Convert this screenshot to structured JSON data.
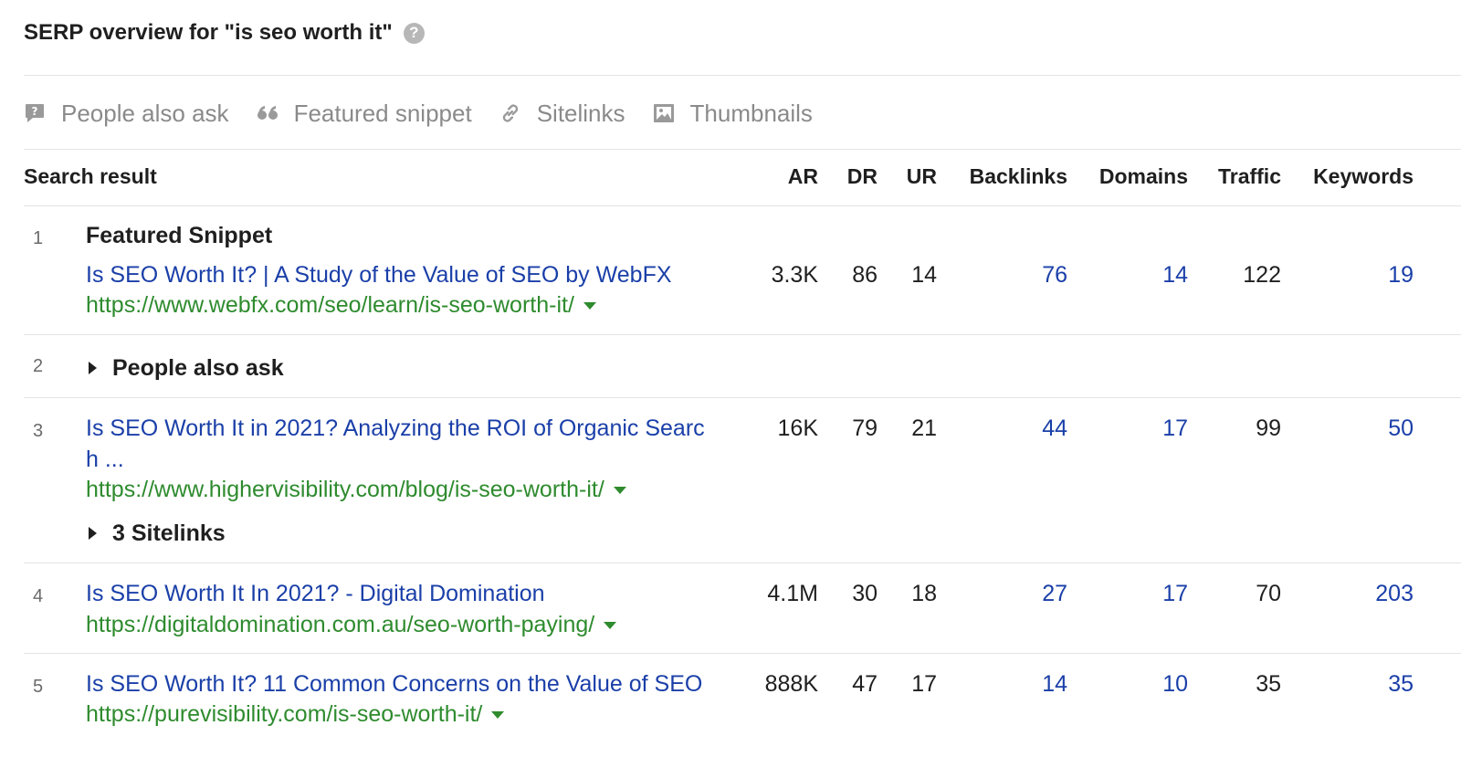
{
  "header": {
    "title": "SERP overview for \"is seo worth it\"",
    "help_icon": "question-circle-icon"
  },
  "features": [
    {
      "label": "People also ask",
      "icon": "question-bubble-icon"
    },
    {
      "label": "Featured snippet",
      "icon": "quote-icon"
    },
    {
      "label": "Sitelinks",
      "icon": "link-icon"
    },
    {
      "label": "Thumbnails",
      "icon": "image-icon"
    }
  ],
  "columns": {
    "search_result": "Search result",
    "ar": "AR",
    "dr": "DR",
    "ur": "UR",
    "backlinks": "Backlinks",
    "domains": "Domains",
    "traffic": "Traffic",
    "keywords": "Keywords"
  },
  "rows": [
    {
      "position": "1",
      "label": "Featured Snippet",
      "title": "Is SEO Worth It? | A Study of the Value of SEO by WebFX",
      "url": "https://www.webfx.com/seo/learn/is-seo-worth-it/",
      "ar": "3.3K",
      "dr": "86",
      "ur": "14",
      "backlinks": "76",
      "domains": "14",
      "traffic": "122",
      "keywords": "19"
    },
    {
      "position": "2",
      "label": "People also ask"
    },
    {
      "position": "3",
      "title_line1": "Is SEO Worth It in 2021? Analyzing the ROI of Organic Searc",
      "title_line2": "h ...",
      "url": "https://www.highervisibility.com/blog/is-seo-worth-it/",
      "sitelinks": "3 Sitelinks",
      "ar": "16K",
      "dr": "79",
      "ur": "21",
      "backlinks": "44",
      "domains": "17",
      "traffic": "99",
      "keywords": "50"
    },
    {
      "position": "4",
      "title": "Is SEO Worth It In 2021? - Digital Domination",
      "url": "https://digitaldomination.com.au/seo-worth-paying/",
      "ar": "4.1M",
      "dr": "30",
      "ur": "18",
      "backlinks": "27",
      "domains": "17",
      "traffic": "70",
      "keywords": "203"
    },
    {
      "position": "5",
      "title": "Is SEO Worth It? 11 Common Concerns on the Value of SEO",
      "url": "https://purevisibility.com/is-seo-worth-it/",
      "ar": "888K",
      "dr": "47",
      "ur": "17",
      "backlinks": "14",
      "domains": "10",
      "traffic": "35",
      "keywords": "35"
    }
  ],
  "colors": {
    "link": "#1a3fa8",
    "url": "#2e8b2e",
    "muted": "#8a8a8a"
  }
}
